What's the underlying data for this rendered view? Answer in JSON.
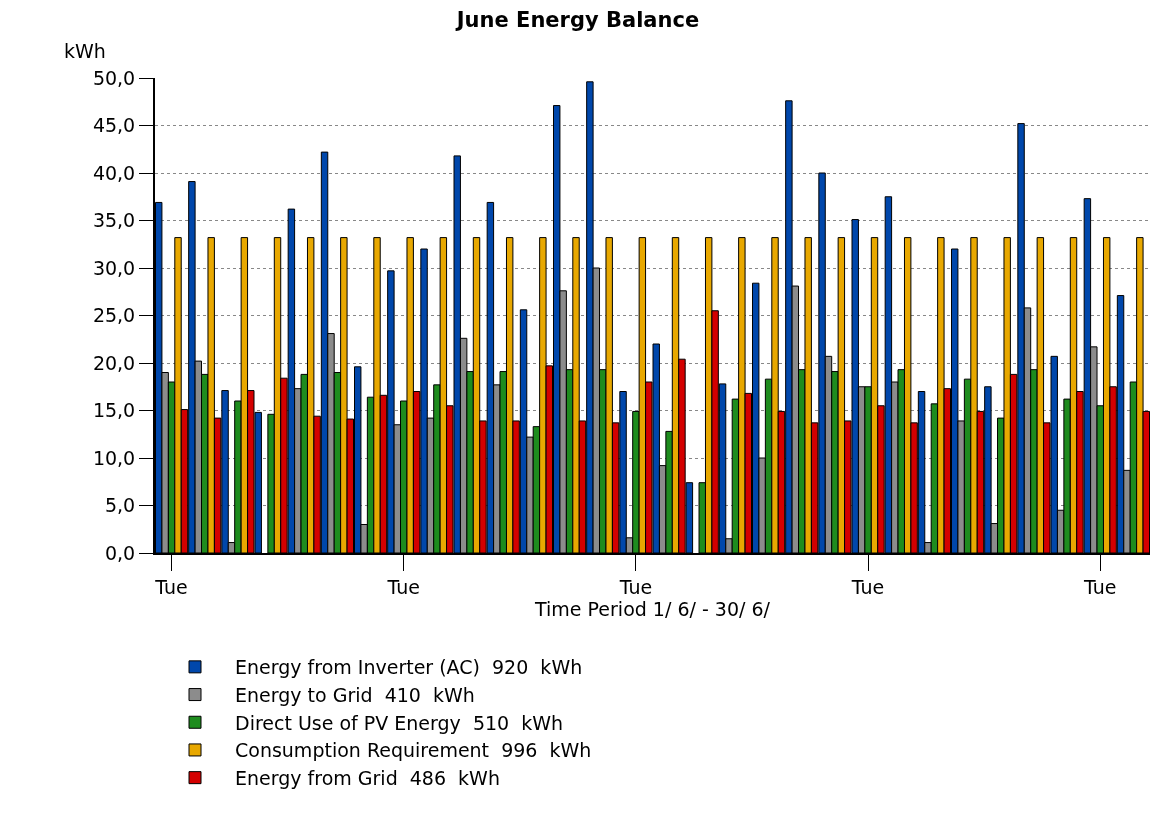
{
  "chart_data": {
    "type": "bar",
    "title": "June Energy Balance",
    "xlabel": "Time Period 1/ 6/ - 30/ 6/",
    "ylabel": "kWh",
    "categories": [
      "Tue",
      null,
      null,
      null,
      null,
      null,
      null,
      "Tue",
      null,
      null,
      null,
      null,
      null,
      null,
      "Tue",
      null,
      null,
      null,
      null,
      null,
      null,
      "Tue",
      null,
      null,
      null,
      null,
      null,
      null,
      "Tue",
      null
    ],
    "series": [
      {
        "name": "Energy from Inverter (AC)  920  kWh",
        "color": "#0047ab",
        "values": [
          36.9,
          39.1,
          17.1,
          14.8,
          36.2,
          42.2,
          19.6,
          29.7,
          32.0,
          41.8,
          36.9,
          25.6,
          47.1,
          49.6,
          17.0,
          22.0,
          7.4,
          17.8,
          28.4,
          47.6,
          40.0,
          35.1,
          37.5,
          17.0,
          32.0,
          17.5,
          45.2,
          20.7,
          37.3,
          27.1
        ]
      },
      {
        "name": "Energy to Grid  410  kWh",
        "color": "#8c8c8c",
        "values": [
          19.0,
          20.2,
          1.1,
          null,
          17.3,
          23.1,
          3.0,
          13.5,
          14.2,
          22.6,
          17.7,
          12.2,
          27.6,
          30.0,
          1.6,
          9.2,
          null,
          1.5,
          10.0,
          28.1,
          20.7,
          17.5,
          18.0,
          1.1,
          13.9,
          3.1,
          25.8,
          4.5,
          21.7,
          8.7
        ]
      },
      {
        "name": "Direct Use of PV Energy  510  kWh",
        "color": "#1e8c1e",
        "values": [
          18.0,
          18.8,
          16.0,
          14.6,
          18.8,
          19.0,
          16.4,
          16.0,
          17.7,
          19.1,
          19.1,
          13.3,
          19.3,
          19.3,
          14.9,
          12.8,
          7.4,
          16.2,
          18.3,
          19.3,
          19.1,
          17.5,
          19.3,
          15.7,
          18.3,
          14.2,
          19.3,
          16.2,
          15.5,
          18.0
        ]
      },
      {
        "name": "Consumption Requirement  996  kWh",
        "color": "#e8a800",
        "values": [
          33.2,
          33.2,
          33.2,
          33.2,
          33.2,
          33.2,
          33.2,
          33.2,
          33.2,
          33.2,
          33.2,
          33.2,
          33.2,
          33.2,
          33.2,
          33.2,
          33.2,
          33.2,
          33.2,
          33.2,
          33.2,
          33.2,
          33.2,
          33.2,
          33.2,
          33.2,
          33.2,
          33.2,
          33.2,
          33.2
        ]
      },
      {
        "name": "Energy from Grid  486  kWh",
        "color": "#d40000",
        "values": [
          15.1,
          14.2,
          17.1,
          18.4,
          14.4,
          14.1,
          16.6,
          17.0,
          15.5,
          13.9,
          13.9,
          19.7,
          13.9,
          13.7,
          18.0,
          20.4,
          25.5,
          16.8,
          14.9,
          13.7,
          13.9,
          15.5,
          13.7,
          17.3,
          14.9,
          18.8,
          13.7,
          17.0,
          17.5,
          14.9
        ]
      }
    ],
    "ylim": [
      0,
      50
    ],
    "yticks": [
      {
        "value": 0,
        "label": "0,0"
      },
      {
        "value": 5,
        "label": "5,0"
      },
      {
        "value": 10,
        "label": "10,0"
      },
      {
        "value": 15,
        "label": "15,0"
      },
      {
        "value": 20,
        "label": "20,0"
      },
      {
        "value": 25,
        "label": "25,0"
      },
      {
        "value": 30,
        "label": "30,0"
      },
      {
        "value": 35,
        "label": "35,0"
      },
      {
        "value": 40,
        "label": "40,0"
      },
      {
        "value": 45,
        "label": "45,0"
      },
      {
        "value": 50,
        "label": "50,0"
      }
    ],
    "grid": "y",
    "legend": "bottom"
  }
}
